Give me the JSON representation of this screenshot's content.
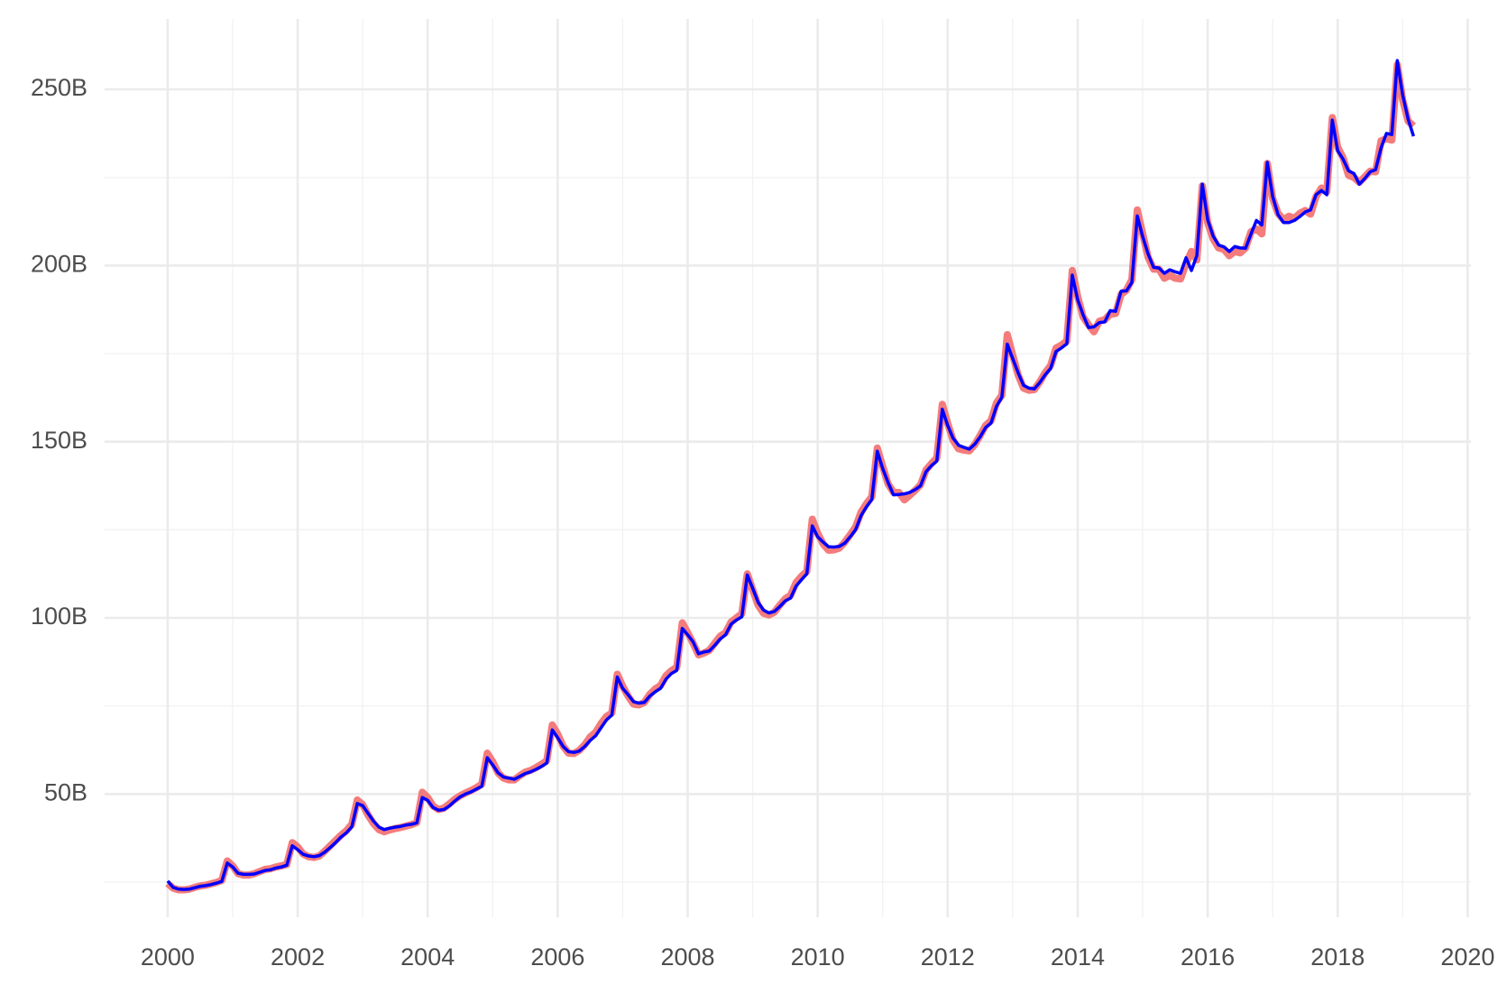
{
  "chart_data": {
    "type": "line",
    "x": [
      2000,
      2000.083,
      2000.167,
      2000.25,
      2000.333,
      2000.417,
      2000.5,
      2000.583,
      2000.667,
      2000.75,
      2000.833,
      2000.917,
      2001,
      2001.083,
      2001.167,
      2001.25,
      2001.333,
      2001.417,
      2001.5,
      2001.583,
      2001.667,
      2001.75,
      2001.833,
      2001.917,
      2002,
      2002.083,
      2002.167,
      2002.25,
      2002.333,
      2002.417,
      2002.5,
      2002.583,
      2002.667,
      2002.75,
      2002.833,
      2002.917,
      2003,
      2003.083,
      2003.167,
      2003.25,
      2003.333,
      2003.417,
      2003.5,
      2003.583,
      2003.667,
      2003.75,
      2003.833,
      2003.917,
      2004,
      2004.083,
      2004.167,
      2004.25,
      2004.333,
      2004.417,
      2004.5,
      2004.583,
      2004.667,
      2004.75,
      2004.833,
      2004.917,
      2005,
      2005.083,
      2005.167,
      2005.25,
      2005.333,
      2005.417,
      2005.5,
      2005.583,
      2005.667,
      2005.75,
      2005.833,
      2005.917,
      2006,
      2006.083,
      2006.167,
      2006.25,
      2006.333,
      2006.417,
      2006.5,
      2006.583,
      2006.667,
      2006.75,
      2006.833,
      2006.917,
      2007,
      2007.083,
      2007.167,
      2007.25,
      2007.333,
      2007.417,
      2007.5,
      2007.583,
      2007.667,
      2007.75,
      2007.833,
      2007.917,
      2008,
      2008.083,
      2008.167,
      2008.25,
      2008.333,
      2008.417,
      2008.5,
      2008.583,
      2008.667,
      2008.75,
      2008.833,
      2008.917,
      2009,
      2009.083,
      2009.167,
      2009.25,
      2009.333,
      2009.417,
      2009.5,
      2009.583,
      2009.667,
      2009.75,
      2009.833,
      2009.917,
      2010,
      2010.083,
      2010.167,
      2010.25,
      2010.333,
      2010.417,
      2010.5,
      2010.583,
      2010.667,
      2010.75,
      2010.833,
      2010.917,
      2011,
      2011.083,
      2011.167,
      2011.25,
      2011.333,
      2011.417,
      2011.5,
      2011.583,
      2011.667,
      2011.75,
      2011.833,
      2011.917,
      2012,
      2012.083,
      2012.167,
      2012.25,
      2012.333,
      2012.417,
      2012.5,
      2012.583,
      2012.667,
      2012.75,
      2012.833,
      2012.917,
      2013,
      2013.083,
      2013.167,
      2013.25,
      2013.333,
      2013.417,
      2013.5,
      2013.583,
      2013.667,
      2013.75,
      2013.833,
      2013.917,
      2014,
      2014.083,
      2014.167,
      2014.25,
      2014.333,
      2014.417,
      2014.5,
      2014.583,
      2014.667,
      2014.75,
      2014.833,
      2014.917,
      2015,
      2015.083,
      2015.167,
      2015.25,
      2015.333,
      2015.417,
      2015.5,
      2015.583,
      2015.667,
      2015.75,
      2015.833,
      2015.917,
      2016,
      2016.083,
      2016.167,
      2016.25,
      2016.333,
      2016.417,
      2016.5,
      2016.583,
      2016.667,
      2016.75,
      2016.833,
      2016.917,
      2017,
      2017.083,
      2017.167,
      2017.25,
      2017.333,
      2017.417,
      2017.5,
      2017.583,
      2017.667,
      2017.75,
      2017.833,
      2017.917,
      2018,
      2018.083,
      2018.167,
      2018.25,
      2018.333,
      2018.417,
      2018.5,
      2018.583,
      2018.667,
      2018.75,
      2018.833,
      2018.917,
      2019,
      2019.083,
      2019.167
    ],
    "series": [
      {
        "color": "#f47c7c",
        "width": 8,
        "values": [
          24.6,
          23.3,
          22.8,
          22.8,
          23.0,
          23.5,
          23.9,
          24.1,
          24.5,
          24.9,
          25.5,
          31.0,
          29.6,
          27.4,
          27.0,
          27.0,
          27.4,
          28.0,
          28.6,
          28.8,
          29.3,
          29.6,
          30.0,
          36.2,
          35.0,
          33.0,
          32.2,
          32.0,
          32.4,
          33.8,
          35.3,
          36.8,
          38.3,
          39.6,
          41.4,
          48.3,
          47.0,
          44.0,
          41.6,
          39.9,
          39.3,
          39.8,
          40.2,
          40.5,
          40.9,
          41.3,
          41.9,
          50.5,
          49.0,
          46.6,
          45.6,
          46.0,
          47.2,
          48.5,
          49.5,
          50.3,
          51.0,
          51.8,
          52.8,
          61.6,
          59.2,
          56.0,
          54.5,
          54.0,
          54.0,
          55.2,
          56.2,
          56.7,
          57.5,
          58.4,
          59.5,
          69.6,
          67.0,
          63.6,
          61.6,
          61.5,
          62.4,
          64.0,
          66.2,
          67.5,
          70.0,
          72.0,
          73.0,
          84.0,
          80.6,
          77.8,
          75.5,
          75.3,
          76.0,
          78.3,
          79.8,
          80.8,
          83.6,
          85.0,
          86.0,
          98.6,
          95.8,
          92.8,
          89.5,
          90.0,
          90.8,
          92.8,
          94.8,
          95.8,
          98.8,
          100.0,
          101.2,
          112.5,
          108.0,
          103.6,
          101.3,
          100.8,
          101.6,
          103.6,
          105.4,
          106.4,
          110.0,
          111.8,
          113.2,
          128.0,
          124.0,
          121.0,
          119.2,
          119.3,
          119.8,
          121.5,
          123.6,
          125.8,
          130.0,
          132.4,
          134.4,
          148.2,
          143.0,
          138.0,
          135.6,
          135.6,
          133.5,
          134.8,
          136.2,
          137.8,
          142.0,
          143.8,
          145.4,
          160.6,
          155.2,
          150.4,
          148.0,
          147.6,
          147.4,
          149.2,
          151.8,
          154.6,
          156.0,
          161.0,
          163.2,
          180.4,
          174.6,
          169.0,
          165.2,
          164.6,
          164.8,
          167.0,
          169.6,
          171.6,
          176.6,
          177.4,
          178.6,
          198.6,
          191.2,
          185.4,
          183.2,
          181.2,
          184.2,
          184.6,
          186.2,
          186.4,
          191.8,
          193.0,
          196.0,
          215.8,
          209.0,
          202.4,
          199.0,
          199.0,
          196.4,
          197.2,
          196.4,
          196.2,
          200.6,
          204.0,
          201.6,
          222.6,
          212.2,
          207.6,
          205.0,
          204.6,
          202.8,
          204.0,
          203.6,
          205.0,
          209.6,
          210.4,
          209.0,
          229.0,
          219.0,
          214.8,
          213.0,
          214.0,
          213.4,
          214.8,
          215.6,
          214.6,
          219.6,
          222.0,
          221.0,
          242.0,
          233.6,
          230.6,
          225.6,
          225.0,
          223.6,
          225.2,
          226.8,
          226.6,
          235.4,
          236.0,
          235.6,
          257.0,
          247.0,
          241.0,
          239.6
        ]
      },
      {
        "color": "#0000ff",
        "width": 3.5,
        "values": [
          25.3,
          23.5,
          23.0,
          22.9,
          23.0,
          23.4,
          23.8,
          24.0,
          24.3,
          24.7,
          25.2,
          30.4,
          29.3,
          27.5,
          27.2,
          27.2,
          27.3,
          27.8,
          28.3,
          28.5,
          29.0,
          29.3,
          29.8,
          35.3,
          34.2,
          32.9,
          32.4,
          32.2,
          32.5,
          33.5,
          34.8,
          36.2,
          37.8,
          39.0,
          40.7,
          47.3,
          46.7,
          44.5,
          42.3,
          40.6,
          39.9,
          40.3,
          40.6,
          40.8,
          41.2,
          41.4,
          41.8,
          49.0,
          48.2,
          46.2,
          45.4,
          45.6,
          46.6,
          48.0,
          49.2,
          50.0,
          50.6,
          51.4,
          52.2,
          60.3,
          58.3,
          56.0,
          54.8,
          54.5,
          54.2,
          55.0,
          55.8,
          56.3,
          57.0,
          57.8,
          58.8,
          68.2,
          66.0,
          63.5,
          62.0,
          61.8,
          62.2,
          63.5,
          65.2,
          66.5,
          68.8,
          71.0,
          72.4,
          83.2,
          80.0,
          78.2,
          76.2,
          75.8,
          76.0,
          77.8,
          79.0,
          80.0,
          82.6,
          84.2,
          85.1,
          97.0,
          95.2,
          93.2,
          89.8,
          90.3,
          90.6,
          92.2,
          94.0,
          95.2,
          98.2,
          99.4,
          100.3,
          112.2,
          108.4,
          104.4,
          102.2,
          101.4,
          101.8,
          103.2,
          104.8,
          105.6,
          109.0,
          110.8,
          112.5,
          126.1,
          123.0,
          121.5,
          120.2,
          120.1,
          120.3,
          121.2,
          123.0,
          125.0,
          129.0,
          131.5,
          133.6,
          147.3,
          142.4,
          138.4,
          134.9,
          135.0,
          135.2,
          135.6,
          136.4,
          137.5,
          141.5,
          143.2,
          144.5,
          159.2,
          154.6,
          151.0,
          149.0,
          148.4,
          147.9,
          149.3,
          151.4,
          154.0,
          155.3,
          160.0,
          162.6,
          177.7,
          173.6,
          169.6,
          166.0,
          165.2,
          165.0,
          166.8,
          169.0,
          170.8,
          175.6,
          176.6,
          177.8,
          197.3,
          190.3,
          186.0,
          182.4,
          182.6,
          183.8,
          184.0,
          187.2,
          187.0,
          192.7,
          192.8,
          195.2,
          214.1,
          208.2,
          203.3,
          199.5,
          199.3,
          197.8,
          198.8,
          198.2,
          197.8,
          202.2,
          198.6,
          202.8,
          223.1,
          213.0,
          208.4,
          205.8,
          205.3,
          204.0,
          205.4,
          205.0,
          204.9,
          209.0,
          212.8,
          211.5,
          229.3,
          219.6,
          214.4,
          212.2,
          212.2,
          212.8,
          213.9,
          215.2,
          215.8,
          220.1,
          221.3,
          220.1,
          241.3,
          232.6,
          230.2,
          226.9,
          226.1,
          223.1,
          224.7,
          226.6,
          227.2,
          233.4,
          237.5,
          237.2,
          258.2,
          248.4,
          241.6,
          236.7
        ]
      }
    ],
    "xlim": [
      1999.03,
      2020.05
    ],
    "xticks": [
      2000,
      2002,
      2004,
      2006,
      2008,
      2010,
      2012,
      2014,
      2016,
      2018,
      2020
    ],
    "xticks_minor": [
      2001,
      2003,
      2005,
      2007,
      2009,
      2011,
      2013,
      2015,
      2017,
      2019
    ],
    "ylim": [
      15,
      270
    ],
    "yticks": [
      {
        "value": 50,
        "label": "50B"
      },
      {
        "value": 100,
        "label": "100B"
      },
      {
        "value": 150,
        "label": "150B"
      },
      {
        "value": 200,
        "label": "200B"
      },
      {
        "value": 250,
        "label": "250B"
      }
    ],
    "yticks_minor": [
      25,
      75,
      125,
      175,
      225
    ],
    "grid": true
  }
}
